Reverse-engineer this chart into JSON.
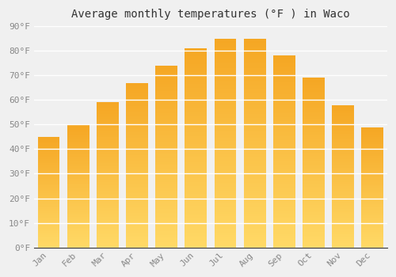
{
  "title": "Average monthly temperatures (°F ) in Waco",
  "months": [
    "Jan",
    "Feb",
    "Mar",
    "Apr",
    "May",
    "Jun",
    "Jul",
    "Aug",
    "Sep",
    "Oct",
    "Nov",
    "Dec"
  ],
  "values": [
    45,
    50,
    59,
    67,
    74,
    81,
    85,
    85,
    78,
    69,
    58,
    49
  ],
  "bar_color_top": "#F5A623",
  "bar_color_bottom": "#FFD966",
  "ylim": [
    0,
    90
  ],
  "yticks": [
    0,
    10,
    20,
    30,
    40,
    50,
    60,
    70,
    80,
    90
  ],
  "background_color": "#f0f0f0",
  "grid_color": "#ffffff",
  "title_fontsize": 10,
  "tick_fontsize": 8,
  "font_family": "monospace",
  "bar_width": 0.75
}
